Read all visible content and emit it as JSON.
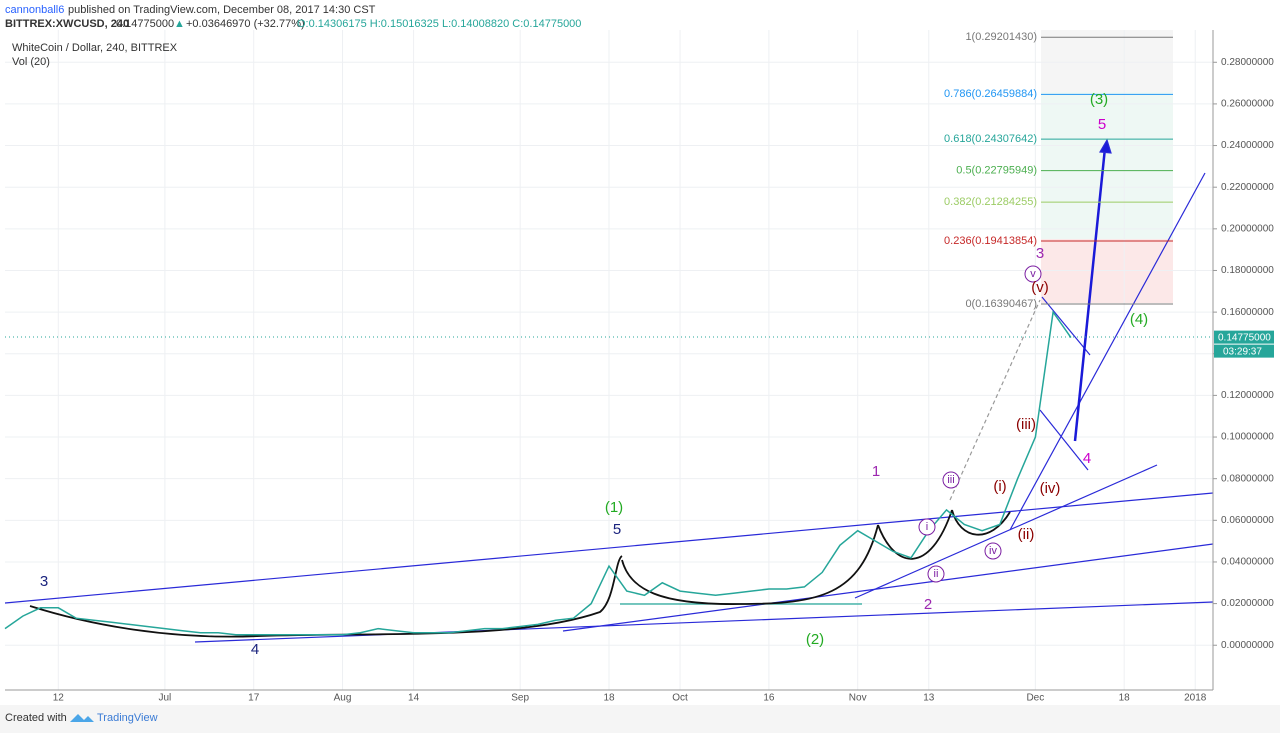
{
  "header": {
    "publisher": "cannonball6",
    "published": "published on TradingView.com, December 08, 2017 14:30 CST",
    "symbol": "BITTREX:XWCUSD, 240",
    "last": "0.14775000",
    "change": "+0.03646970 (+32.77%)",
    "ohlc": "O:0.14306175 H:0.15016325 L:0.14008820 C:0.14775000"
  },
  "chart_data": {
    "type": "line",
    "title": "WhiteCoin / Dollar, 240, BITTREX",
    "subtitle": "Vol (20)",
    "categories": [
      null,
      null,
      null,
      "12",
      null,
      null,
      null,
      null,
      null,
      "Jul",
      null,
      null,
      null,
      null,
      "17",
      null,
      null,
      null,
      null,
      "Aug",
      null,
      null,
      null,
      "14",
      null,
      null,
      null,
      null,
      null,
      "Sep",
      null,
      null,
      null,
      null,
      "18",
      null,
      null,
      null,
      "Oct",
      null,
      null,
      null,
      null,
      "16",
      null,
      null,
      null,
      null,
      "Nov",
      null,
      null,
      null,
      "13",
      null,
      null,
      null,
      null,
      null,
      "Dec",
      null,
      null,
      null,
      null,
      "18",
      null,
      null,
      null,
      "2018",
      null
    ],
    "series": [
      {
        "name": "XWCUSD",
        "color": "#26a69a",
        "values": [
          0.008,
          0.014,
          0.018,
          0.018,
          0.013,
          0.012,
          0.011,
          0.01,
          0.009,
          0.008,
          0.007,
          0.006,
          0.006,
          0.005,
          0.005,
          0.005,
          0.005,
          0.005,
          0.005,
          0.005,
          0.006,
          0.008,
          0.007,
          0.006,
          0.006,
          0.006,
          0.007,
          0.008,
          0.008,
          0.009,
          0.01,
          0.012,
          0.013,
          0.02,
          0.038,
          0.026,
          0.024,
          0.03,
          0.026,
          0.025,
          0.024,
          0.025,
          0.026,
          0.027,
          0.027,
          0.028,
          0.035,
          0.048,
          0.055,
          0.05,
          0.045,
          0.042,
          0.055,
          0.065,
          0.058,
          0.055,
          0.058,
          0.08,
          0.1,
          0.16,
          0.14775,
          null,
          null,
          null,
          null,
          null,
          null,
          null,
          null
        ]
      }
    ],
    "ylim": [
      -0.0215,
      0.2955
    ],
    "yticks": [
      {
        "value": 0,
        "label": "0.00000000"
      },
      {
        "value": 0.02,
        "label": "0.02000000"
      },
      {
        "value": 0.04,
        "label": "0.04000000"
      },
      {
        "value": 0.06,
        "label": "0.06000000"
      },
      {
        "value": 0.08,
        "label": "0.08000000"
      },
      {
        "value": 0.1,
        "label": "0.10000000"
      },
      {
        "value": 0.12,
        "label": "0.12000000"
      },
      {
        "value": 0.14,
        "label": "0.14000000"
      },
      {
        "value": 0.16,
        "label": "0.16000000"
      },
      {
        "value": 0.18,
        "label": "0.18000000"
      },
      {
        "value": 0.2,
        "label": "0.20000000"
      },
      {
        "value": 0.22,
        "label": "0.22000000"
      },
      {
        "value": 0.24,
        "label": "0.24000000"
      },
      {
        "value": 0.26,
        "label": "0.26000000"
      },
      {
        "value": 0.28,
        "label": "0.28000000"
      }
    ],
    "grid": true,
    "last_price": {
      "value": 0.14775,
      "label": "0.14775000",
      "timer": "03:29:37"
    },
    "fib": [
      {
        "value": 0.2920143,
        "label": "1(0.29201430)",
        "color": "#787878"
      },
      {
        "value": 0.26459884,
        "label": "0.786(0.26459884)",
        "color": "#2196f3"
      },
      {
        "value": 0.24307642,
        "label": "0.618(0.24307642)",
        "color": "#26a69a"
      },
      {
        "value": 0.22795949,
        "label": "0.5(0.22795949)",
        "color": "#4caf50"
      },
      {
        "value": 0.21284255,
        "label": "0.382(0.21284255)",
        "color": "#9ccc65"
      },
      {
        "value": 0.19413854,
        "label": "0.236(0.19413854)",
        "color": "#c62828"
      },
      {
        "value": 0.16390467,
        "label": "0(0.16390467)",
        "color": "#787878"
      }
    ],
    "annotations": [
      {
        "text": "3",
        "color": "#1a237e"
      },
      {
        "text": "4",
        "color": "#1a237e"
      },
      {
        "text": "5",
        "color": "#1a237e"
      },
      {
        "text": "(1)",
        "color": "#22aa22"
      },
      {
        "text": "(2)",
        "color": "#22aa22"
      },
      {
        "text": "1",
        "color": "#9c27b0"
      },
      {
        "text": "2",
        "color": "#9c27b0"
      },
      {
        "text": "i",
        "color": "#7b1fa2"
      },
      {
        "text": "ii",
        "color": "#7b1fa2"
      },
      {
        "text": "iii",
        "color": "#7b1fa2"
      },
      {
        "text": "iv",
        "color": "#7b1fa2"
      },
      {
        "text": "v",
        "color": "#7b1fa2"
      },
      {
        "text": "3",
        "color": "#9c27b0"
      },
      {
        "text": "(i)",
        "color": "#8b0000"
      },
      {
        "text": "(ii)",
        "color": "#8b0000"
      },
      {
        "text": "(iii)",
        "color": "#8b0000"
      },
      {
        "text": "(iv)",
        "color": "#8b0000"
      },
      {
        "text": "(v)",
        "color": "#8b0000"
      },
      {
        "text": "4",
        "color": "#cc00cc"
      },
      {
        "text": "5",
        "color": "#cc00cc"
      },
      {
        "text": "(3)",
        "color": "#22aa22"
      },
      {
        "text": "(4)",
        "color": "#22aa22"
      }
    ]
  },
  "footer": {
    "created": "Created with",
    "brand": "TradingView"
  }
}
